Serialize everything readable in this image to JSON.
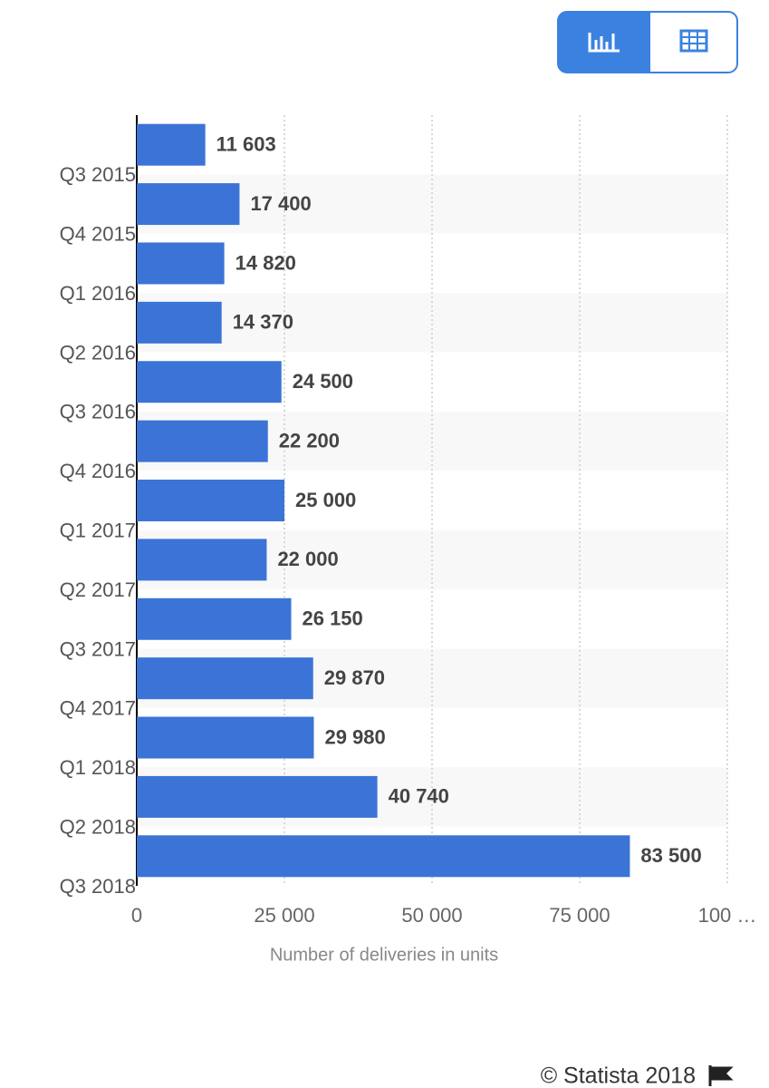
{
  "chart_data": {
    "type": "bar",
    "orientation": "horizontal",
    "categories": [
      "Q3 2015",
      "Q4 2015",
      "Q1 2016",
      "Q2 2016",
      "Q3 2016",
      "Q4 2016",
      "Q1 2017",
      "Q2 2017",
      "Q3 2017",
      "Q4 2017",
      "Q1 2018",
      "Q2 2018",
      "Q3 2018"
    ],
    "values": [
      11603,
      17400,
      14820,
      14370,
      24500,
      22200,
      25000,
      22000,
      26150,
      29870,
      29980,
      40740,
      83500
    ],
    "value_labels": [
      "11 603",
      "17 400",
      "14 820",
      "14 370",
      "24 500",
      "22 200",
      "25 000",
      "22 000",
      "26 150",
      "29 870",
      "29 980",
      "40 740",
      "83 500"
    ],
    "color": "#3b74d6",
    "xlabel": "Number of deliveries in units",
    "xlim": [
      0,
      100000
    ],
    "xticks": [
      0,
      {
        "value": 25000,
        "label": "25 000"
      },
      {
        "value": 50000,
        "label": "50 000"
      },
      {
        "value": 75000,
        "label": "75 000"
      },
      {
        "value": 100000,
        "label": "100 …"
      }
    ],
    "grid": true,
    "source": "© Statista 2018"
  }
}
